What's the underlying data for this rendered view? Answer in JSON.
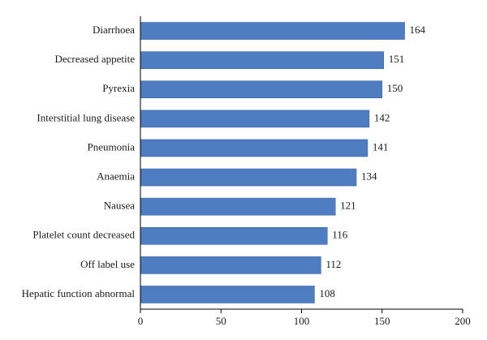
{
  "chart_data": {
    "type": "bar",
    "orientation": "horizontal",
    "title": "",
    "xlabel": "",
    "ylabel": "",
    "categories": [
      "Diarrhoea",
      "Decreased appetite",
      "Pyrexia",
      "Interstitial lung disease",
      "Pneumonia",
      "Anaemia",
      "Nausea",
      "Platelet count decreased",
      "Off label use",
      "Hepatic function abnormal"
    ],
    "values": [
      164,
      151,
      150,
      142,
      141,
      134,
      121,
      116,
      112,
      108
    ],
    "value_labels": [
      "164",
      "151",
      "150",
      "142",
      "141",
      "134",
      "121",
      "116",
      "112",
      "108"
    ],
    "xlim": [
      0,
      200
    ],
    "xticks": [
      0,
      50,
      100,
      150,
      200
    ],
    "xtick_labels": [
      "0",
      "50",
      "100",
      "150",
      "200"
    ],
    "grid": false,
    "legend": "none",
    "bar_color": "#4f7dc1",
    "bar_edge_color": "#3b64a3"
  }
}
